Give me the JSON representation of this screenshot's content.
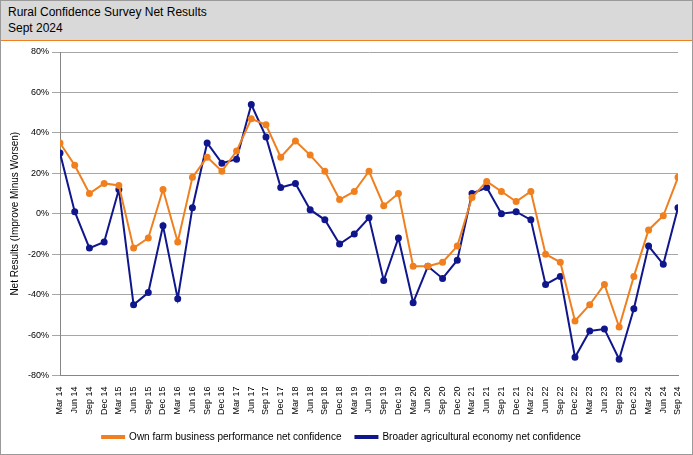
{
  "chart_data": {
    "type": "line",
    "title": "Rural Confidence Survey Net Results",
    "subtitle": "Sept 2024",
    "y_label": "Net Results (Improve Minus Worsen)",
    "categories": [
      "Mar 14",
      "Jun 14",
      "Sep 14",
      "Dec 14",
      "Mar 15",
      "Jun 15",
      "Sep 15",
      "Dec 15",
      "Mar 16",
      "Jun 16",
      "Sep 16",
      "Dec 16",
      "Mar 17",
      "Jun 17",
      "Sep 17",
      "Dec 17",
      "Mar 18",
      "Jun 18",
      "Sep 18",
      "Dec 18",
      "Mar 19",
      "Jun 19",
      "Sep 19",
      "Dec 19",
      "Mar 20",
      "Jun 20",
      "Sep 20",
      "Dec 20",
      "Mar 21",
      "Jun 21",
      "Sep 21",
      "Dec 21",
      "Mar 22",
      "Jun 22",
      "Sep 22",
      "Dec 22",
      "Mar 23",
      "Jun 23",
      "Sep 23",
      "Dec 23",
      "Mar 24",
      "Jun 24",
      "Sep 24"
    ],
    "series": [
      {
        "name": "Own farm business performance net confidence",
        "color": "#f0801f",
        "marker": "circle",
        "line_style": "solid",
        "values": [
          35,
          24,
          10,
          15,
          14,
          -17,
          -12,
          12,
          -14,
          18,
          28,
          21,
          31,
          47,
          44,
          28,
          36,
          29,
          21,
          7,
          11,
          21,
          4,
          10,
          -26,
          -26,
          -24,
          -16,
          8,
          16,
          11,
          6,
          11,
          -20,
          -24,
          -53,
          -45,
          -35,
          -56,
          -31,
          -8,
          -1,
          18
        ]
      },
      {
        "name": "Broader agricultural economy net confidence",
        "color": "#10168c",
        "marker": "circle",
        "line_style": "solid",
        "values": [
          30,
          1,
          -17,
          -14,
          12,
          -45,
          -39,
          -6,
          -42,
          3,
          35,
          25,
          27,
          54,
          38,
          13,
          15,
          2,
          -3,
          -15,
          -10,
          -2,
          -33,
          -12,
          -44,
          -26,
          -32,
          -23,
          10,
          13,
          0,
          1,
          -3,
          -35,
          -31,
          -71,
          -58,
          -57,
          -72,
          -47,
          -16,
          -25,
          3
        ]
      }
    ],
    "ylim": [
      -80,
      80
    ],
    "yticks": [
      {
        "value": -80,
        "label": "-80%"
      },
      {
        "value": -60,
        "label": "-60%"
      },
      {
        "value": -40,
        "label": "-40%"
      },
      {
        "value": -20,
        "label": "-20%"
      },
      {
        "value": 0,
        "label": "0%"
      },
      {
        "value": 20,
        "label": "20%"
      },
      {
        "value": 40,
        "label": "40%"
      },
      {
        "value": 60,
        "label": "60%"
      },
      {
        "value": 80,
        "label": "80%"
      }
    ],
    "grid": true,
    "legend": "bottom"
  }
}
